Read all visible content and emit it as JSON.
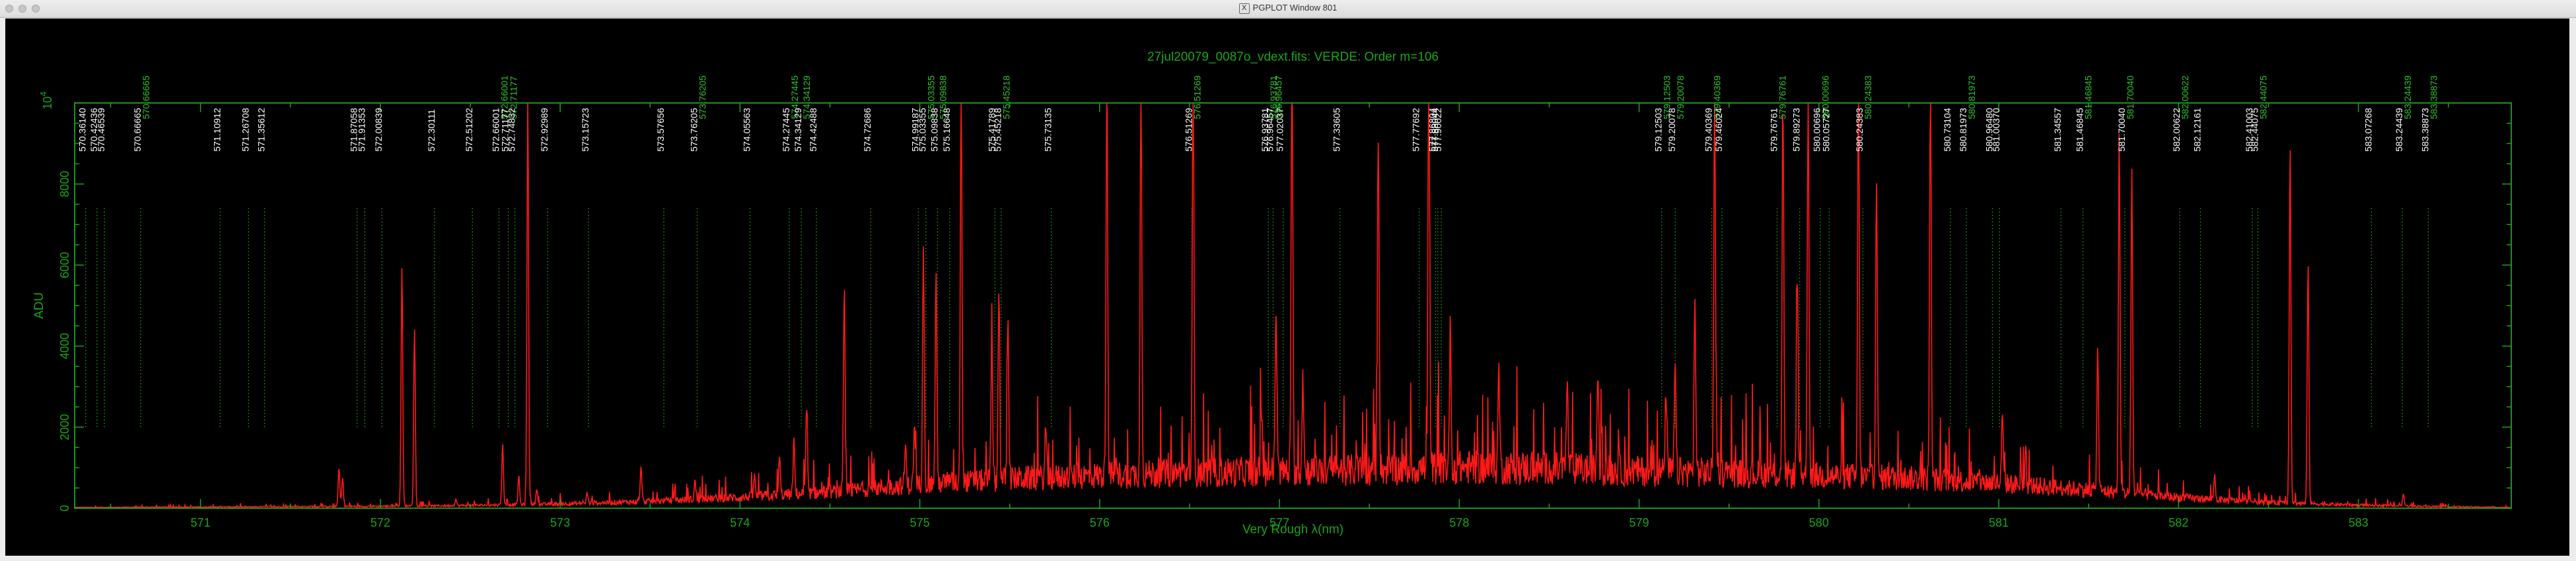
{
  "window": {
    "title": "PGPLOT Window 801",
    "icon": "x11-icon"
  },
  "chart_data": {
    "type": "line",
    "title": "27jul20079_0087o_vdext.fits: VERDE: Order m=106",
    "xlabel": "Very Rough λ(nm)",
    "ylabel": "ADU",
    "y_exponent_label": "10",
    "y_exponent_sup": "4",
    "xlim": [
      570.3,
      583.85
    ],
    "ylim": [
      0,
      10000
    ],
    "x_ticks": [
      "571",
      "572",
      "573",
      "574",
      "575",
      "576",
      "577",
      "578",
      "579",
      "580",
      "581",
      "582",
      "583"
    ],
    "y_ticks": [
      "0",
      "2000",
      "4000",
      "6000",
      "8000"
    ],
    "colors": {
      "spectrum": "#ff1a1a",
      "axes": "#1aa51a",
      "label_text": "#ffffff",
      "label_alt": "#2ec22e",
      "background": "#000000"
    },
    "line_labels": [
      {
        "x": 570.3614,
        "text": "570.36140"
      },
      {
        "x": 570.42436,
        "text": "570.42436"
      },
      {
        "x": 570.46539,
        "text": "570.46539"
      },
      {
        "x": 570.66665,
        "text": "570.66665"
      },
      {
        "x": 570.66665,
        "text": "570.66665",
        "alt": true
      },
      {
        "x": 571.10912,
        "text": "571.10912"
      },
      {
        "x": 571.26708,
        "text": "571.26708"
      },
      {
        "x": 571.35612,
        "text": "571.35612"
      },
      {
        "x": 571.87058,
        "text": "571.87058"
      },
      {
        "x": 571.91353,
        "text": "571.91353"
      },
      {
        "x": 572.00839,
        "text": "572.00839"
      },
      {
        "x": 572.30111,
        "text": "572.30111"
      },
      {
        "x": 572.51202,
        "text": "572.51202"
      },
      {
        "x": 572.66001,
        "text": "572.66001"
      },
      {
        "x": 572.66001,
        "text": "572.66001",
        "alt": true
      },
      {
        "x": 572.71177,
        "text": "572.71177"
      },
      {
        "x": 572.71177,
        "text": "572.71177",
        "alt": true
      },
      {
        "x": 572.74832,
        "text": "572.74832"
      },
      {
        "x": 572.92989,
        "text": "572.92989"
      },
      {
        "x": 573.15723,
        "text": "573.15723"
      },
      {
        "x": 573.57656,
        "text": "573.57656"
      },
      {
        "x": 573.76205,
        "text": "573.76205"
      },
      {
        "x": 573.76205,
        "text": "573.76205",
        "alt": true
      },
      {
        "x": 574.05563,
        "text": "574.05563"
      },
      {
        "x": 574.27445,
        "text": "574.27445"
      },
      {
        "x": 574.27445,
        "text": "574.27445",
        "alt": true
      },
      {
        "x": 574.34129,
        "text": "574.34129"
      },
      {
        "x": 574.34129,
        "text": "574.34129",
        "alt": true
      },
      {
        "x": 574.42488,
        "text": "574.42488"
      },
      {
        "x": 574.72686,
        "text": "574.72686"
      },
      {
        "x": 574.99187,
        "text": "574.99187"
      },
      {
        "x": 575.03355,
        "text": "575.03355"
      },
      {
        "x": 575.03355,
        "text": "575.03355",
        "alt": true
      },
      {
        "x": 575.09838,
        "text": "575.09838"
      },
      {
        "x": 575.09838,
        "text": "575.09838",
        "alt": true
      },
      {
        "x": 575.16648,
        "text": "575.16648"
      },
      {
        "x": 575.41789,
        "text": "575.41789"
      },
      {
        "x": 575.45218,
        "text": "575.45218"
      },
      {
        "x": 575.45218,
        "text": "575.45218",
        "alt": true
      },
      {
        "x": 575.73135,
        "text": "575.73135"
      },
      {
        "x": 576.51269,
        "text": "576.51269"
      },
      {
        "x": 576.51269,
        "text": "576.51269",
        "alt": true
      },
      {
        "x": 576.93781,
        "text": "576.93781"
      },
      {
        "x": 576.93781,
        "text": "576.93781",
        "alt": true
      },
      {
        "x": 576.96457,
        "text": "576.96457"
      },
      {
        "x": 576.96457,
        "text": "576.96457",
        "alt": true
      },
      {
        "x": 577.02037,
        "text": "577.02037"
      },
      {
        "x": 577.33605,
        "text": "577.33605"
      },
      {
        "x": 577.77692,
        "text": "577.77692"
      },
      {
        "x": 577.86804,
        "text": "577.86804"
      },
      {
        "x": 577.88044,
        "text": "577.88044"
      },
      {
        "x": 577.90022,
        "text": "577.90022"
      },
      {
        "x": 579.12503,
        "text": "579.12503"
      },
      {
        "x": 579.12503,
        "text": "579.12503",
        "alt": true
      },
      {
        "x": 579.20078,
        "text": "579.20078"
      },
      {
        "x": 579.20078,
        "text": "579.20078",
        "alt": true
      },
      {
        "x": 579.40369,
        "text": "579.40369"
      },
      {
        "x": 579.40369,
        "text": "579.40369",
        "alt": true
      },
      {
        "x": 579.46024,
        "text": "579.46024"
      },
      {
        "x": 579.76761,
        "text": "579.76761"
      },
      {
        "x": 579.76761,
        "text": "579.76761",
        "alt": true
      },
      {
        "x": 579.89273,
        "text": "579.89273"
      },
      {
        "x": 580.00696,
        "text": "580.00696"
      },
      {
        "x": 580.00696,
        "text": "580.00696",
        "alt": true
      },
      {
        "x": 580.05727,
        "text": "580.05727"
      },
      {
        "x": 580.24383,
        "text": "580.24383"
      },
      {
        "x": 580.24383,
        "text": "580.24383",
        "alt": true
      },
      {
        "x": 580.73104,
        "text": "580.73104"
      },
      {
        "x": 580.81973,
        "text": "580.81973"
      },
      {
        "x": 580.81973,
        "text": "580.81973",
        "alt": true
      },
      {
        "x": 580.9648,
        "text": "580.96480"
      },
      {
        "x": 581.0037,
        "text": "581.00370"
      },
      {
        "x": 581.34557,
        "text": "581.34557"
      },
      {
        "x": 581.46845,
        "text": "581.46845"
      },
      {
        "x": 581.46845,
        "text": "581.46845",
        "alt": true
      },
      {
        "x": 581.7004,
        "text": "581.70040"
      },
      {
        "x": 581.7004,
        "text": "581.70040",
        "alt": true
      },
      {
        "x": 582.00622,
        "text": "582.00622"
      },
      {
        "x": 582.00622,
        "text": "582.00622",
        "alt": true
      },
      {
        "x": 582.12161,
        "text": "582.12161"
      },
      {
        "x": 582.44075,
        "text": "582.44075"
      },
      {
        "x": 582.44075,
        "text": "582.44075",
        "alt": true
      },
      {
        "x": 582.41003,
        "text": "582.41003"
      },
      {
        "x": 583.07268,
        "text": "583.07268"
      },
      {
        "x": 583.24439,
        "text": "583.24439"
      },
      {
        "x": 583.24439,
        "text": "583.24439",
        "alt": true
      },
      {
        "x": 583.38873,
        "text": "583.38873"
      },
      {
        "x": 583.38873,
        "text": "583.38873",
        "alt": true
      }
    ],
    "series": [
      {
        "baseline": [
          [
            570.3,
            20
          ],
          [
            571.5,
            40
          ],
          [
            572.3,
            60
          ],
          [
            573.0,
            110
          ],
          [
            573.5,
            180
          ],
          [
            574.0,
            280
          ],
          [
            574.5,
            420
          ],
          [
            575.0,
            620
          ],
          [
            575.5,
            760
          ],
          [
            576.0,
            850
          ],
          [
            576.5,
            920
          ],
          [
            577.0,
            960
          ],
          [
            577.5,
            1000
          ],
          [
            578.0,
            1060
          ],
          [
            578.5,
            1040
          ],
          [
            579.0,
            960
          ],
          [
            579.5,
            920
          ],
          [
            580.0,
            850
          ],
          [
            580.5,
            780
          ],
          [
            581.0,
            650
          ],
          [
            581.5,
            480
          ],
          [
            582.0,
            280
          ],
          [
            582.5,
            150
          ],
          [
            583.0,
            80
          ],
          [
            583.5,
            40
          ],
          [
            583.85,
            20
          ]
        ],
        "peaks": [
          [
            571.77,
            950
          ],
          [
            571.79,
            700
          ],
          [
            572.12,
            5900
          ],
          [
            572.19,
            4400
          ],
          [
            572.42,
            160
          ],
          [
            572.68,
            1500
          ],
          [
            572.77,
            700
          ],
          [
            572.82,
            9950
          ],
          [
            572.87,
            400
          ],
          [
            573.15,
            250
          ],
          [
            573.45,
            850
          ],
          [
            573.75,
            450
          ],
          [
            574.08,
            500
          ],
          [
            574.22,
            900
          ],
          [
            574.3,
            1300
          ],
          [
            574.37,
            2050
          ],
          [
            574.58,
            4950
          ],
          [
            574.92,
            1000
          ],
          [
            574.97,
            1400
          ],
          [
            575.02,
            6100
          ],
          [
            575.09,
            5250
          ],
          [
            575.23,
            9950
          ],
          [
            575.4,
            3500
          ],
          [
            575.44,
            4850
          ],
          [
            575.49,
            4100
          ],
          [
            575.7,
            1200
          ],
          [
            576.04,
            9950
          ],
          [
            576.23,
            9950
          ],
          [
            576.52,
            9950
          ],
          [
            576.9,
            1400
          ],
          [
            576.98,
            4000
          ],
          [
            577.07,
            9950
          ],
          [
            577.13,
            2400
          ],
          [
            577.55,
            8200
          ],
          [
            577.83,
            9950
          ],
          [
            577.95,
            3400
          ],
          [
            578.22,
            2500
          ],
          [
            578.6,
            2200
          ],
          [
            578.77,
            2300
          ],
          [
            579.15,
            2100
          ],
          [
            579.2,
            2600
          ],
          [
            579.31,
            4300
          ],
          [
            579.42,
            9950
          ],
          [
            579.8,
            9000
          ],
          [
            579.88,
            4700
          ],
          [
            579.94,
            9950
          ],
          [
            580.22,
            9950
          ],
          [
            580.32,
            7400
          ],
          [
            580.62,
            9950
          ],
          [
            581.02,
            1600
          ],
          [
            581.55,
            3600
          ],
          [
            581.67,
            8700
          ],
          [
            581.74,
            8000
          ],
          [
            582.2,
            600
          ],
          [
            582.62,
            8800
          ],
          [
            582.72,
            6000
          ],
          [
            583.25,
            300
          ]
        ]
      }
    ]
  }
}
